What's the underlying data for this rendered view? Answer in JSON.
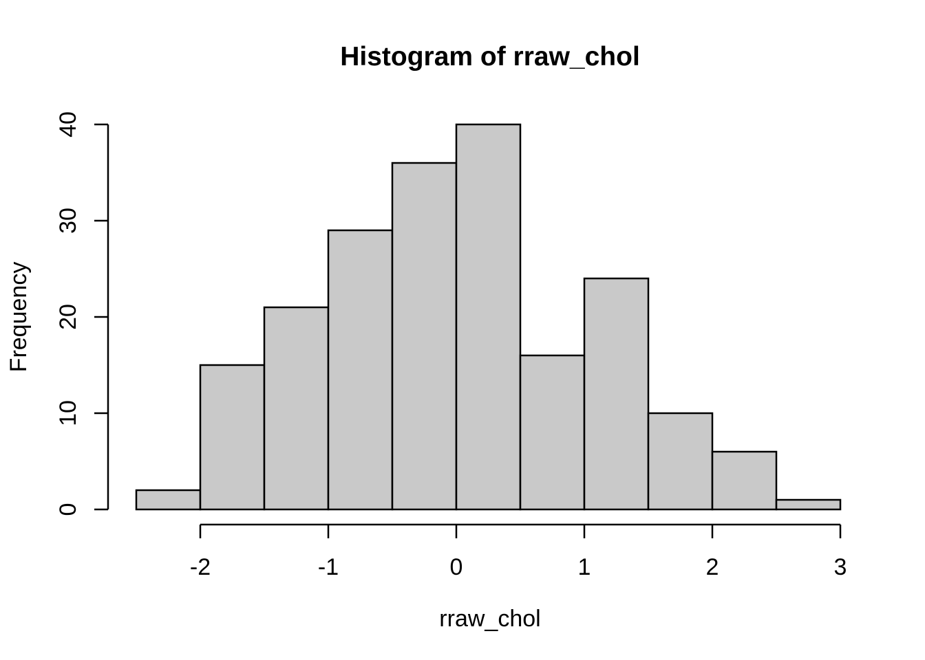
{
  "chart_data": {
    "type": "bar",
    "subtype": "histogram",
    "title": "Histogram of rraw_chol",
    "xlabel": "rraw_chol",
    "ylabel": "Frequency",
    "bin_edges": [
      -2.5,
      -2.0,
      -1.5,
      -1.0,
      -0.5,
      0.0,
      0.5,
      1.0,
      1.5,
      2.0,
      2.5,
      3.0
    ],
    "values": [
      2,
      15,
      21,
      29,
      36,
      40,
      16,
      24,
      10,
      6,
      1
    ],
    "x_ticks": [
      -2,
      -1,
      0,
      1,
      2,
      3
    ],
    "x_tick_labels": [
      "-2",
      "-1",
      "0",
      "1",
      "2",
      "3"
    ],
    "y_ticks": [
      0,
      10,
      20,
      30,
      40
    ],
    "y_tick_labels": [
      "0",
      "10",
      "20",
      "30",
      "40"
    ],
    "xlim": [
      -2.5,
      3.0
    ],
    "ylim": [
      0,
      40
    ],
    "grid": false,
    "legend": false,
    "bar_fill": "#C9C9C9",
    "bar_stroke": "#000000",
    "axis_color": "#000000",
    "text_color": "#000000",
    "background": "#FFFFFF"
  }
}
